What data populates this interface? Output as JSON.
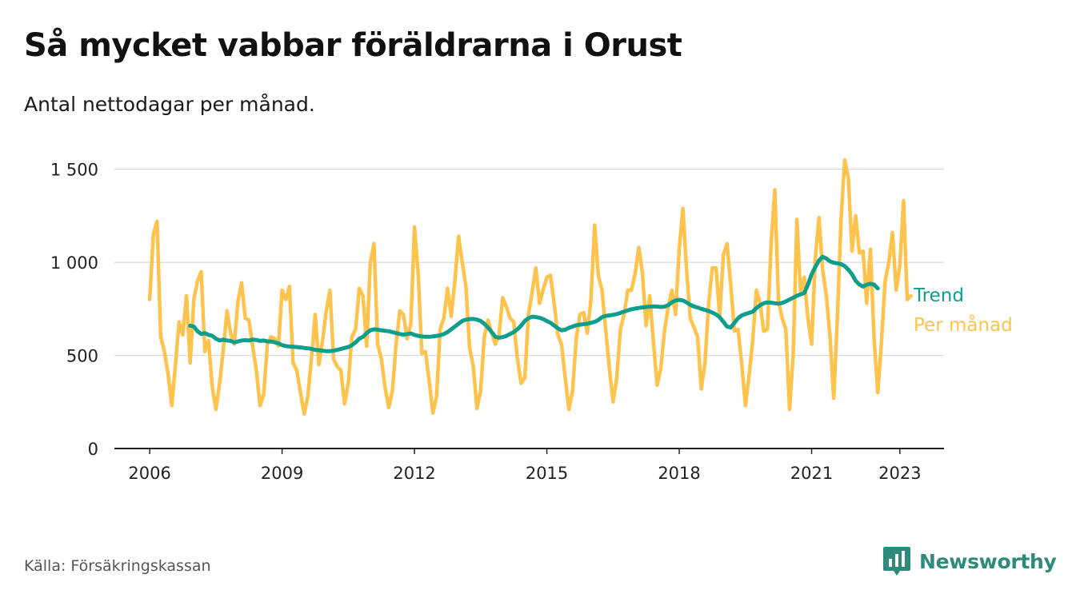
{
  "header": {
    "title": "Så mycket vabbar föräldrarna i Orust",
    "subtitle": "Antal nettodagar per månad."
  },
  "footer": {
    "source": "Källa: Försäkringskassan",
    "brand": "Newsworthy"
  },
  "colors": {
    "trend": "#0f9e8c",
    "monthly": "#fec34d",
    "grid": "#d9d9d9",
    "axis": "#222222",
    "brand": "#2e8a7a"
  },
  "chart_data": {
    "type": "line",
    "title": "Så mycket vabbar föräldrarna i Orust",
    "subtitle": "Antal nettodagar per månad.",
    "xlabel": "",
    "ylabel": "",
    "ylim": [
      0,
      1550
    ],
    "xlim": [
      2005.2,
      2024.0
    ],
    "yticks": [
      0,
      500,
      1000,
      1500
    ],
    "ytick_labels": [
      "0",
      "500",
      "1 000",
      "1 500"
    ],
    "xticks": [
      2006,
      2009,
      2012,
      2015,
      2018,
      2021,
      2023
    ],
    "xtick_labels": [
      "2006",
      "2009",
      "2012",
      "2015",
      "2018",
      "2021",
      "2023"
    ],
    "grid": true,
    "legend": "inline at line ends (right)",
    "series": [
      {
        "name": "Per månad",
        "color": "#fec34d",
        "x_start": 2006.0,
        "x_step": 0.08333,
        "values": [
          800,
          1150,
          1220,
          600,
          520,
          400,
          230,
          450,
          680,
          610,
          820,
          460,
          800,
          900,
          950,
          520,
          580,
          330,
          210,
          350,
          530,
          740,
          620,
          560,
          790,
          890,
          700,
          690,
          550,
          420,
          230,
          290,
          560,
          600,
          590,
          550,
          850,
          800,
          870,
          460,
          420,
          300,
          185,
          280,
          490,
          720,
          450,
          580,
          740,
          850,
          480,
          440,
          420,
          240,
          350,
          600,
          640,
          860,
          820,
          550,
          1000,
          1100,
          560,
          480,
          330,
          220,
          310,
          560,
          740,
          720,
          590,
          670,
          1190,
          940,
          510,
          520,
          360,
          190,
          280,
          640,
          700,
          860,
          710,
          900,
          1140,
          1000,
          870,
          540,
          440,
          215,
          310,
          600,
          690,
          620,
          560,
          610,
          810,
          760,
          700,
          680,
          480,
          350,
          380,
          720,
          840,
          970,
          780,
          850,
          920,
          930,
          780,
          610,
          560,
          380,
          210,
          310,
          590,
          720,
          730,
          620,
          800,
          1200,
          930,
          850,
          640,
          430,
          250,
          380,
          640,
          720,
          850,
          850,
          940,
          1080,
          940,
          660,
          820,
          570,
          340,
          430,
          630,
          760,
          850,
          720,
          1070,
          1290,
          960,
          700,
          650,
          600,
          320,
          460,
          780,
          970,
          970,
          710,
          1040,
          1100,
          880,
          630,
          640,
          450,
          230,
          390,
          580,
          850,
          780,
          630,
          640,
          1100,
          1390,
          790,
          700,
          640,
          210,
          500,
          1230,
          840,
          920,
          700,
          560,
          1020,
          1240,
          960,
          820,
          600,
          270,
          700,
          1230,
          1550,
          1450,
          1060,
          1250,
          1050,
          1060,
          780,
          1070,
          590,
          300,
          570,
          900,
          1000,
          1160,
          850,
          980,
          1330,
          800,
          820
        ]
      },
      {
        "name": "Trend",
        "color": "#0f9e8c",
        "x_start": 2006.917,
        "x_step": 0.08333,
        "values": [
          660,
          655,
          630,
          615,
          620,
          610,
          605,
          590,
          580,
          585,
          580,
          578,
          570,
          575,
          580,
          582,
          580,
          585,
          583,
          578,
          580,
          575,
          575,
          570,
          565,
          555,
          550,
          548,
          546,
          545,
          543,
          540,
          538,
          535,
          530,
          528,
          525,
          523,
          523,
          525,
          530,
          535,
          540,
          545,
          555,
          570,
          590,
          600,
          620,
          635,
          640,
          638,
          635,
          632,
          630,
          625,
          620,
          615,
          612,
          615,
          618,
          610,
          605,
          602,
          600,
          600,
          602,
          605,
          608,
          615,
          625,
          640,
          655,
          670,
          685,
          692,
          695,
          696,
          692,
          685,
          670,
          650,
          625,
          600,
          595,
          598,
          605,
          615,
          625,
          640,
          660,
          685,
          700,
          708,
          706,
          702,
          695,
          685,
          675,
          660,
          645,
          635,
          638,
          648,
          655,
          662,
          665,
          668,
          670,
          675,
          680,
          690,
          705,
          712,
          715,
          718,
          722,
          728,
          735,
          742,
          748,
          752,
          755,
          758,
          760,
          762,
          763,
          762,
          760,
          762,
          770,
          785,
          795,
          798,
          795,
          785,
          772,
          763,
          757,
          750,
          745,
          738,
          730,
          720,
          705,
          680,
          655,
          650,
          675,
          700,
          715,
          722,
          728,
          735,
          755,
          770,
          780,
          785,
          783,
          780,
          778,
          782,
          790,
          800,
          810,
          820,
          828,
          835,
          880,
          935,
          975,
          1010,
          1030,
          1020,
          1005,
          998,
          995,
          990,
          980,
          960,
          935,
          900,
          880,
          870,
          880,
          885,
          880,
          860
        ]
      }
    ]
  }
}
